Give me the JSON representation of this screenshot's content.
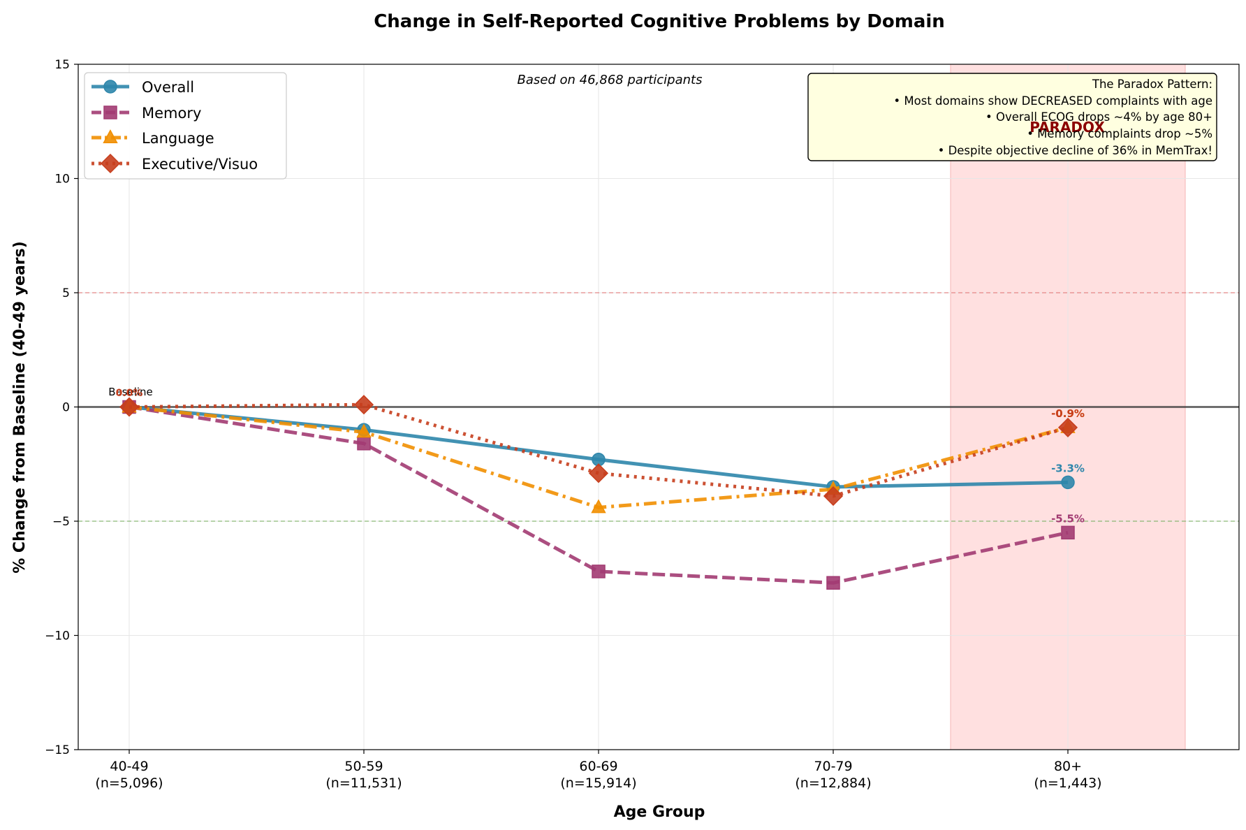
{
  "chart_data": {
    "type": "line",
    "title": "Change in Self-Reported Cognitive Problems by Domain",
    "xlabel": "Age Group",
    "ylabel": "% Change from Baseline (40-49 years)",
    "ylim": [
      -15,
      15
    ],
    "yticks": [
      -15,
      -10,
      -5,
      0,
      5,
      10,
      15
    ],
    "ytick_labels": [
      "−15",
      "−10",
      "−5",
      "0",
      "5",
      "10",
      "15"
    ],
    "categories": [
      "40-49",
      "50-59",
      "60-69",
      "70-79",
      "80+"
    ],
    "category_sublabels": [
      "(n=5,096)",
      "(n=11,531)",
      "(n=15,914)",
      "(n=12,884)",
      "(n=1,443)"
    ],
    "grid": true,
    "legend_position": "top-left",
    "series": [
      {
        "name": "Overall",
        "values": [
          0,
          -1.0,
          -2.3,
          -3.5,
          -3.3
        ],
        "color": "#2e86ab",
        "marker": "circle",
        "dash": "solid",
        "end_label": "-3.3%"
      },
      {
        "name": "Memory",
        "values": [
          0,
          -1.6,
          -7.2,
          -7.7,
          -5.5
        ],
        "color": "#a23b72",
        "marker": "square",
        "dash": "dashed",
        "end_label": "-5.5%"
      },
      {
        "name": "Language",
        "values": [
          0,
          -1.1,
          -4.4,
          -3.6,
          -0.9
        ],
        "color": "#f18f01",
        "marker": "triangle",
        "dash": "dashdot",
        "end_label": "-0.9%"
      },
      {
        "name": "Executive/Visuo",
        "values": [
          0,
          0.1,
          -2.9,
          -3.9,
          -0.9
        ],
        "color": "#c73e1d",
        "marker": "diamond",
        "dash": "dotted",
        "end_label": "-0.9%"
      }
    ],
    "reference_lines": [
      {
        "y": 0,
        "color": "#000000"
      },
      {
        "y": 5,
        "color": "#e06666"
      },
      {
        "y": -5,
        "color": "#6aa84f"
      }
    ],
    "shaded_region": {
      "x_from": 3.5,
      "x_to": 4.5,
      "color": "#ffcccc",
      "label": "PARADOX",
      "label_color": "#8b0000"
    },
    "annotations": {
      "baseline_label": "Baseline",
      "baseline_value_label": "0.0%",
      "participants_note": "Based on 46,868 participants",
      "paradox_box": {
        "title": "The Paradox Pattern:",
        "lines": [
          "• Most domains show DECREASED complaints with age",
          "• Overall ECOG drops ~4% by age 80+",
          "• Memory complaints drop ~5%",
          "• Despite objective decline of 36% in MemTrax!"
        ]
      }
    }
  }
}
